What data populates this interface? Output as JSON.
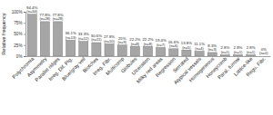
{
  "chart_data": {
    "type": "bar",
    "ylabel": "Relative frequency",
    "categories": [
      "Polychromia",
      "Asymmetry",
      "Parallel ridges",
      "Irreg. Dif. Pig.",
      "Blue/gray veil",
      "Blotches",
      "Irreg. Fibr.",
      "Multicomp",
      "Globules",
      "Ulceration",
      "Milky red areas",
      "Regression",
      "Serrated",
      "Atypical vessels",
      "Homogeneous",
      "Honeycomb",
      "Paral. furrow",
      "Lattice-like",
      "Regu. Fibr."
    ],
    "values": [
      94.4,
      77.8,
      77.8,
      36.1,
      33.3,
      30.6,
      27.8,
      25,
      22.2,
      22.2,
      19.4,
      16.6,
      13.8,
      11.1,
      8.3,
      2.8,
      2.8,
      2.8,
      0
    ],
    "value_labels": [
      "94.4%",
      "77.8%",
      "77.8%",
      "36.1%",
      "33.3%",
      "30.6%",
      "27.8%",
      "25%",
      "22.2%",
      "22.2%",
      "19.4%",
      "16.6%",
      "13.8%",
      "11.1%",
      "8.3%",
      "2.8%",
      "2.8%",
      "2.8%",
      "0%"
    ],
    "count_labels": [
      "(n=34)",
      "(n=28)",
      "(n=28)",
      "(n=13)",
      "(n=12)",
      "(n=11)",
      "(n=10)",
      "(n=9)",
      "(n=8)",
      "(n=8)",
      "(n=7)",
      "(n=6)",
      "(n=5)",
      "(n=4)",
      "(n=3)",
      "(n=1)",
      "(n=1)",
      "(n=1)",
      "(n=0)"
    ],
    "color": "#a6a6a6",
    "ylim": [
      0,
      100
    ],
    "yticks": [
      {
        "value": 0,
        "label": "0%"
      },
      {
        "value": 25,
        "label": "25%"
      },
      {
        "value": 50,
        "label": "50%"
      },
      {
        "value": 75,
        "label": "75%"
      },
      {
        "value": 100,
        "label": "100%"
      }
    ],
    "grid": false,
    "data_labels": true
  }
}
